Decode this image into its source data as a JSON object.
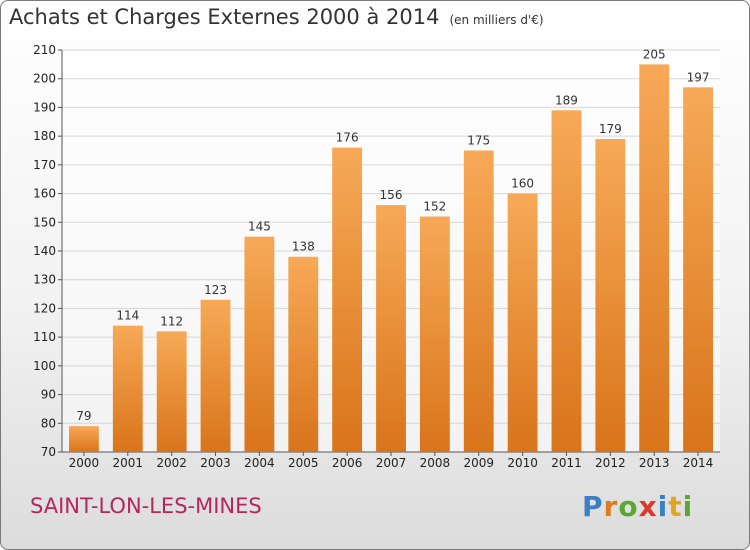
{
  "title": "Achats et Charges Externes 2000 à 2014",
  "unit": "(en milliers d'€)",
  "commune": "SAINT-LON-LES-MINES",
  "logo": {
    "text": "Proxiti",
    "letters": [
      {
        "ch": "P",
        "color": "#3a7fc4"
      },
      {
        "ch": "r",
        "color": "#e07a1f"
      },
      {
        "ch": "o",
        "color": "#5aa832"
      },
      {
        "ch": "x",
        "color": "#d93a2b"
      },
      {
        "ch": "i",
        "color": "#3a7fc4"
      },
      {
        "ch": "t",
        "color": "#e0a51f"
      },
      {
        "ch": "i",
        "color": "#5aa832"
      }
    ]
  },
  "chart_data": {
    "type": "bar",
    "categories": [
      "2000",
      "2001",
      "2002",
      "2003",
      "2004",
      "2005",
      "2006",
      "2007",
      "2008",
      "2009",
      "2010",
      "2011",
      "2012",
      "2013",
      "2014"
    ],
    "values": [
      79,
      114,
      112,
      123,
      145,
      138,
      176,
      156,
      152,
      175,
      160,
      189,
      179,
      205,
      197
    ],
    "ylim": [
      70,
      210
    ],
    "yticks": [
      70,
      80,
      90,
      100,
      110,
      120,
      130,
      140,
      150,
      160,
      170,
      180,
      190,
      200,
      210
    ],
    "grid": true,
    "bar_color_top": "#f7a957",
    "bar_color_bottom": "#d9741a"
  }
}
